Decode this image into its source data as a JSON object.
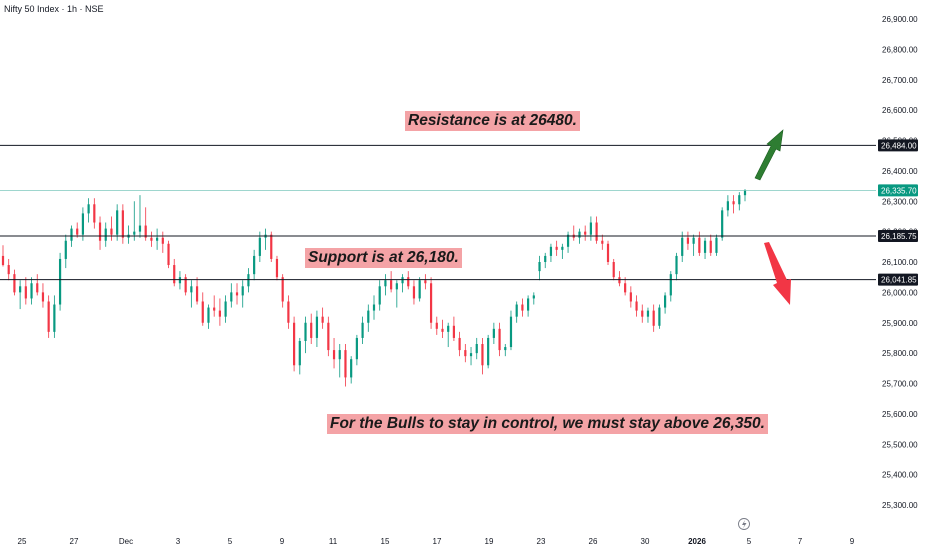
{
  "chart_title": "Nifty 50 Index · 1h · NSE",
  "annotations": {
    "resistance": "Resistance is at 26480.",
    "support": "Support is at 26,180.",
    "bulls": "For the Bulls to stay in control, we must stay above 26,350."
  },
  "colors": {
    "up": "#089981",
    "down": "#f23645",
    "level_line": "#131722",
    "last_price_line": "#7fc9bd",
    "last_price_badge": "#089981",
    "level_badge": "#131722",
    "note_bg": "#f4a3a6",
    "arrow_up": "#2e7d32",
    "arrow_down": "#f23645"
  },
  "icons": {
    "event_marker": "lightning-icon",
    "arrow_up": "arrow-up-icon",
    "arrow_down": "arrow-down-icon"
  },
  "chart_data": {
    "type": "candlestick",
    "title": "Nifty 50 Index · 1h · NSE",
    "y_axis": {
      "position": "right",
      "range": [
        25250,
        26960
      ],
      "ticks": [
        25300,
        25400,
        25500,
        25600,
        25700,
        25800,
        25900,
        26000,
        26100,
        26200,
        26300,
        26400,
        26500,
        26600,
        26700,
        26800,
        26900
      ],
      "tick_labels": [
        "25,300.00",
        "25,400.00",
        "25,500.00",
        "25,600.00",
        "25,700.00",
        "25,800.00",
        "25,900.00",
        "26,000.00",
        "26,100.00",
        "26,200.00",
        "26,300.00",
        "26,400.00",
        "26,500.00",
        "26,600.00",
        "26,700.00",
        "26,800.00",
        "26,900.00"
      ]
    },
    "x_axis": {
      "tick_labels": [
        "25",
        "27",
        "Dec",
        "3",
        "5",
        "9",
        "11",
        "15",
        "17",
        "19",
        "23",
        "26",
        "30",
        "2026",
        "5",
        "7",
        "9"
      ],
      "bold_labels": [
        "2026"
      ]
    },
    "horizontal_levels": [
      {
        "price": 26484.0,
        "label": "26,484.00",
        "kind": "resistance"
      },
      {
        "price": 26185.75,
        "label": "26,185.75",
        "kind": "support"
      },
      {
        "price": 26041.85,
        "label": "26,041.85",
        "kind": "support"
      }
    ],
    "last_price": {
      "price": 26335.7,
      "label": "26,335.70"
    },
    "candles": [
      [
        26120,
        26155,
        26085,
        26090
      ],
      [
        26090,
        26110,
        26040,
        26060
      ],
      [
        26060,
        26075,
        25990,
        26000
      ],
      [
        26000,
        26040,
        25945,
        26020
      ],
      [
        26020,
        26050,
        25960,
        25980
      ],
      [
        25980,
        26050,
        25960,
        26030
      ],
      [
        26030,
        26060,
        25990,
        26000
      ],
      [
        26000,
        26030,
        25950,
        25970
      ],
      [
        25970,
        25990,
        25850,
        25870
      ],
      [
        25870,
        25990,
        25850,
        25960
      ],
      [
        25960,
        26130,
        25940,
        26110
      ],
      [
        26110,
        26190,
        26080,
        26170
      ],
      [
        26170,
        26220,
        26150,
        26210
      ],
      [
        26210,
        26230,
        26180,
        26190
      ],
      [
        26190,
        26280,
        26170,
        26260
      ],
      [
        26260,
        26310,
        26230,
        26290
      ],
      [
        26290,
        26310,
        26210,
        26230
      ],
      [
        26230,
        26250,
        26140,
        26170
      ],
      [
        26170,
        26230,
        26150,
        26210
      ],
      [
        26210,
        26250,
        26170,
        26190
      ],
      [
        26190,
        26290,
        26170,
        26270
      ],
      [
        26270,
        26290,
        26160,
        26180
      ],
      [
        26180,
        26220,
        26160,
        26190
      ],
      [
        26190,
        26300,
        26170,
        26200
      ],
      [
        26200,
        26320,
        26180,
        26220
      ],
      [
        26220,
        26280,
        26170,
        26180
      ],
      [
        26180,
        26200,
        26150,
        26170
      ],
      [
        26170,
        26210,
        26140,
        26180
      ],
      [
        26180,
        26200,
        26130,
        26160
      ],
      [
        26160,
        26170,
        26080,
        26090
      ],
      [
        26090,
        26110,
        26020,
        26030
      ],
      [
        26030,
        26070,
        26010,
        26050
      ],
      [
        26050,
        26060,
        25990,
        26000
      ],
      [
        26000,
        26040,
        25950,
        26020
      ],
      [
        26020,
        26050,
        25960,
        25970
      ],
      [
        25970,
        26000,
        25890,
        25900
      ],
      [
        25900,
        25960,
        25880,
        25950
      ],
      [
        25950,
        25990,
        25920,
        25940
      ],
      [
        25940,
        25980,
        25890,
        25920
      ],
      [
        25920,
        25990,
        25900,
        25970
      ],
      [
        25970,
        26030,
        25950,
        26000
      ],
      [
        26000,
        26030,
        25960,
        25990
      ],
      [
        25990,
        26040,
        25950,
        26020
      ],
      [
        26020,
        26080,
        26000,
        26060
      ],
      [
        26060,
        26140,
        26040,
        26120
      ],
      [
        26120,
        26200,
        26100,
        26180
      ],
      [
        26180,
        26210,
        26140,
        26190
      ],
      [
        26190,
        26200,
        26100,
        26110
      ],
      [
        26110,
        26120,
        26040,
        26050
      ],
      [
        26050,
        26060,
        25950,
        25970
      ],
      [
        25970,
        25990,
        25880,
        25900
      ],
      [
        25900,
        25920,
        25740,
        25760
      ],
      [
        25760,
        25850,
        25730,
        25840
      ],
      [
        25840,
        25920,
        25800,
        25900
      ],
      [
        25900,
        25930,
        25830,
        25850
      ],
      [
        25850,
        25940,
        25820,
        25920
      ],
      [
        25920,
        25950,
        25880,
        25900
      ],
      [
        25900,
        25920,
        25790,
        25810
      ],
      [
        25810,
        25850,
        25750,
        25780
      ],
      [
        25780,
        25830,
        25720,
        25810
      ],
      [
        25810,
        25830,
        25690,
        25720
      ],
      [
        25720,
        25790,
        25700,
        25780
      ],
      [
        25780,
        25860,
        25760,
        25850
      ],
      [
        25850,
        25920,
        25830,
        25900
      ],
      [
        25900,
        25960,
        25870,
        25940
      ],
      [
        25940,
        25990,
        25910,
        25960
      ],
      [
        25960,
        26040,
        25940,
        26020
      ],
      [
        26020,
        26060,
        25990,
        26040
      ],
      [
        26040,
        26070,
        26000,
        26010
      ],
      [
        26010,
        26040,
        25950,
        26030
      ],
      [
        26030,
        26060,
        26000,
        26050
      ],
      [
        26050,
        26070,
        26010,
        26020
      ],
      [
        26020,
        26040,
        25960,
        25980
      ],
      [
        25980,
        26050,
        25970,
        26040
      ],
      [
        26040,
        26060,
        26010,
        26030
      ],
      [
        26030,
        26050,
        25880,
        25900
      ],
      [
        25900,
        25920,
        25860,
        25880
      ],
      [
        25880,
        25910,
        25850,
        25870
      ],
      [
        25870,
        25900,
        25820,
        25890
      ],
      [
        25890,
        25920,
        25840,
        25850
      ],
      [
        25850,
        25870,
        25790,
        25810
      ],
      [
        25810,
        25830,
        25770,
        25790
      ],
      [
        25790,
        25820,
        25760,
        25800
      ],
      [
        25800,
        25850,
        25780,
        25830
      ],
      [
        25830,
        25850,
        25730,
        25760
      ],
      [
        25760,
        25860,
        25750,
        25850
      ],
      [
        25850,
        25900,
        25830,
        25880
      ],
      [
        25880,
        25900,
        25790,
        25810
      ],
      [
        25810,
        25830,
        25790,
        25820
      ],
      [
        25820,
        25940,
        25810,
        25920
      ],
      [
        25920,
        25970,
        25900,
        25960
      ],
      [
        25960,
        25980,
        25920,
        25940
      ],
      [
        25940,
        25990,
        25920,
        25980
      ],
      [
        25980,
        26000,
        25960,
        25990
      ],
      [
        26070,
        26120,
        26040,
        26100
      ],
      [
        26100,
        26130,
        26080,
        26120
      ],
      [
        26120,
        26160,
        26100,
        26150
      ],
      [
        26150,
        26170,
        26120,
        26140
      ],
      [
        26140,
        26160,
        26110,
        26150
      ],
      [
        26150,
        26200,
        26130,
        26190
      ],
      [
        26190,
        26220,
        26170,
        26180
      ],
      [
        26180,
        26210,
        26160,
        26200
      ],
      [
        26200,
        26220,
        26170,
        26190
      ],
      [
        26190,
        26250,
        26170,
        26230
      ],
      [
        26230,
        26250,
        26160,
        26170
      ],
      [
        26170,
        26190,
        26140,
        26160
      ],
      [
        26160,
        26170,
        26090,
        26100
      ],
      [
        26100,
        26110,
        26040,
        26050
      ],
      [
        26050,
        26070,
        26020,
        26030
      ],
      [
        26030,
        26050,
        25990,
        26000
      ],
      [
        26000,
        26020,
        25950,
        25970
      ],
      [
        25970,
        25990,
        25920,
        25940
      ],
      [
        25940,
        25960,
        25900,
        25920
      ],
      [
        25920,
        25950,
        25900,
        25940
      ],
      [
        25940,
        25960,
        25870,
        25890
      ],
      [
        25890,
        25960,
        25880,
        25950
      ],
      [
        25950,
        26000,
        25930,
        25990
      ],
      [
        25990,
        26070,
        25970,
        26060
      ],
      [
        26060,
        26130,
        26040,
        26120
      ],
      [
        26120,
        26200,
        26100,
        26180
      ],
      [
        26180,
        26200,
        26140,
        26160
      ],
      [
        26160,
        26190,
        26120,
        26180
      ],
      [
        26180,
        26200,
        26120,
        26130
      ],
      [
        26130,
        26180,
        26110,
        26170
      ],
      [
        26170,
        26190,
        26120,
        26130
      ],
      [
        26130,
        26190,
        26120,
        26180
      ],
      [
        26180,
        26280,
        26170,
        26270
      ],
      [
        26270,
        26320,
        26250,
        26300
      ],
      [
        26300,
        26320,
        26260,
        26290
      ],
      [
        26290,
        26330,
        26270,
        26320
      ],
      [
        26320,
        26340,
        26300,
        26335.7
      ]
    ]
  }
}
